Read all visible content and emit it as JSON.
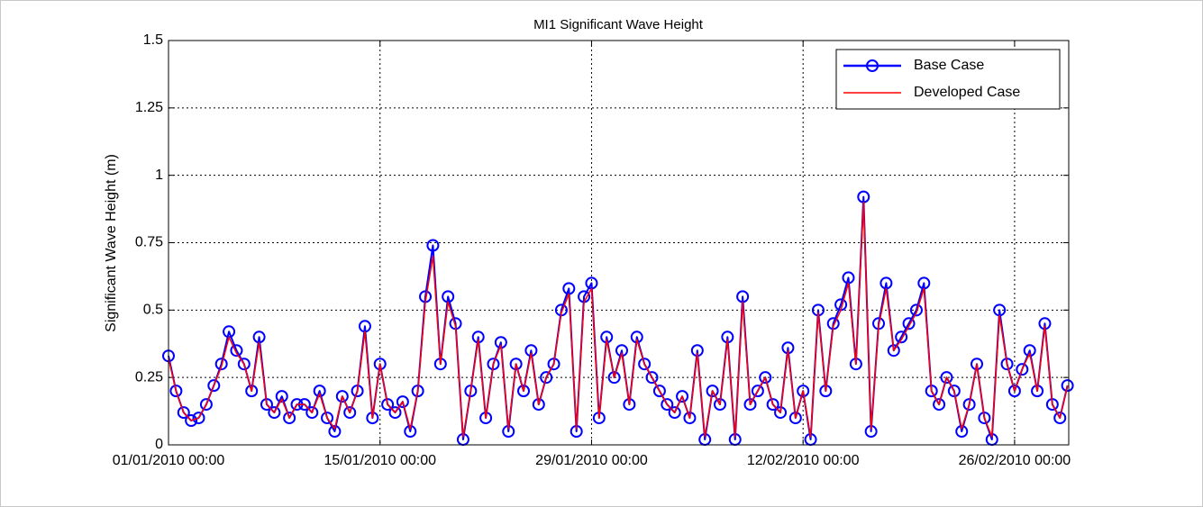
{
  "chart_data": {
    "type": "line",
    "title": "MI1 Significant Wave Height",
    "ylabel": "Significant Wave Height (m)",
    "x": [
      "01/01/2010 00:00",
      "01/01/2010 12:00",
      "02/01/2010 00:00",
      "02/01/2010 12:00",
      "03/01/2010 00:00",
      "03/01/2010 12:00",
      "04/01/2010 00:00",
      "04/01/2010 12:00",
      "05/01/2010 00:00",
      "05/01/2010 12:00",
      "06/01/2010 00:00",
      "06/01/2010 12:00",
      "07/01/2010 00:00",
      "07/01/2010 12:00",
      "08/01/2010 00:00",
      "08/01/2010 12:00",
      "09/01/2010 00:00",
      "09/01/2010 12:00",
      "10/01/2010 00:00",
      "10/01/2010 12:00",
      "11/01/2010 00:00",
      "11/01/2010 12:00",
      "12/01/2010 00:00",
      "12/01/2010 12:00",
      "13/01/2010 00:00",
      "13/01/2010 12:00",
      "14/01/2010 00:00",
      "14/01/2010 12:00",
      "15/01/2010 00:00",
      "15/01/2010 12:00",
      "16/01/2010 00:00",
      "16/01/2010 12:00",
      "17/01/2010 00:00",
      "17/01/2010 12:00",
      "18/01/2010 00:00",
      "18/01/2010 12:00",
      "19/01/2010 00:00",
      "19/01/2010 12:00",
      "20/01/2010 00:00",
      "20/01/2010 12:00",
      "21/01/2010 00:00",
      "21/01/2010 12:00",
      "22/01/2010 00:00",
      "22/01/2010 12:00",
      "23/01/2010 00:00",
      "23/01/2010 12:00",
      "24/01/2010 00:00",
      "24/01/2010 12:00",
      "25/01/2010 00:00",
      "25/01/2010 12:00",
      "26/01/2010 00:00",
      "26/01/2010 12:00",
      "27/01/2010 00:00",
      "27/01/2010 12:00",
      "28/01/2010 00:00",
      "28/01/2010 12:00",
      "29/01/2010 00:00",
      "29/01/2010 12:00",
      "30/01/2010 00:00",
      "30/01/2010 12:00",
      "31/01/2010 00:00",
      "31/01/2010 12:00",
      "01/02/2010 00:00",
      "01/02/2010 12:00",
      "02/02/2010 00:00",
      "02/02/2010 12:00",
      "03/02/2010 00:00",
      "03/02/2010 12:00",
      "04/02/2010 00:00",
      "04/02/2010 12:00",
      "05/02/2010 00:00",
      "05/02/2010 12:00",
      "06/02/2010 00:00",
      "06/02/2010 12:00",
      "07/02/2010 00:00",
      "07/02/2010 12:00",
      "08/02/2010 00:00",
      "08/02/2010 12:00",
      "09/02/2010 00:00",
      "09/02/2010 12:00",
      "10/02/2010 00:00",
      "10/02/2010 12:00",
      "11/02/2010 00:00",
      "11/02/2010 12:00",
      "12/02/2010 00:00",
      "12/02/2010 12:00",
      "13/02/2010 00:00",
      "13/02/2010 12:00",
      "14/02/2010 00:00",
      "14/02/2010 12:00",
      "15/02/2010 00:00",
      "15/02/2010 12:00",
      "16/02/2010 00:00",
      "16/02/2010 12:00",
      "17/02/2010 00:00",
      "17/02/2010 12:00",
      "18/02/2010 00:00",
      "18/02/2010 12:00",
      "19/02/2010 00:00",
      "19/02/2010 12:00",
      "20/02/2010 00:00",
      "20/02/2010 12:00",
      "21/02/2010 00:00",
      "21/02/2010 12:00",
      "22/02/2010 00:00",
      "22/02/2010 12:00",
      "23/02/2010 00:00",
      "23/02/2010 12:00",
      "24/02/2010 00:00",
      "24/02/2010 12:00",
      "25/02/2010 00:00",
      "25/02/2010 12:00",
      "26/02/2010 00:00",
      "26/02/2010 12:00",
      "27/02/2010 00:00",
      "27/02/2010 12:00",
      "28/02/2010 00:00",
      "28/02/2010 12:00",
      "01/03/2010 00:00",
      "01/03/2010 12:00"
    ],
    "series": [
      {
        "name": "Base Case",
        "color": "#0000ff",
        "marker": "o",
        "values": [
          0.33,
          0.2,
          0.12,
          0.09,
          0.1,
          0.15,
          0.22,
          0.3,
          0.42,
          0.35,
          0.3,
          0.2,
          0.4,
          0.15,
          0.12,
          0.18,
          0.1,
          0.15,
          0.15,
          0.12,
          0.2,
          0.1,
          0.05,
          0.18,
          0.12,
          0.2,
          0.44,
          0.1,
          0.3,
          0.15,
          0.12,
          0.16,
          0.05,
          0.2,
          0.55,
          0.74,
          0.3,
          0.55,
          0.45,
          0.02,
          0.2,
          0.4,
          0.1,
          0.3,
          0.38,
          0.05,
          0.3,
          0.2,
          0.35,
          0.15,
          0.25,
          0.3,
          0.5,
          0.58,
          0.05,
          0.55,
          0.6,
          0.1,
          0.4,
          0.25,
          0.35,
          0.15,
          0.4,
          0.3,
          0.25,
          0.2,
          0.15,
          0.12,
          0.18,
          0.1,
          0.35,
          0.02,
          0.2,
          0.15,
          0.4,
          0.02,
          0.55,
          0.15,
          0.2,
          0.25,
          0.15,
          0.12,
          0.36,
          0.1,
          0.2,
          0.02,
          0.5,
          0.2,
          0.45,
          0.52,
          0.62,
          0.3,
          0.92,
          0.05,
          0.45,
          0.6,
          0.35,
          0.4,
          0.45,
          0.5,
          0.6,
          0.2,
          0.15,
          0.25,
          0.2,
          0.05,
          0.15,
          0.3,
          0.1,
          0.02,
          0.5,
          0.3,
          0.2,
          0.28,
          0.35,
          0.2,
          0.45,
          0.15,
          0.1,
          0.22
        ]
      },
      {
        "name": "Developed Case",
        "color": "#ff0000",
        "values": [
          0.32,
          0.2,
          0.12,
          0.09,
          0.1,
          0.15,
          0.22,
          0.29,
          0.4,
          0.34,
          0.3,
          0.2,
          0.38,
          0.15,
          0.12,
          0.17,
          0.1,
          0.15,
          0.15,
          0.12,
          0.19,
          0.1,
          0.06,
          0.18,
          0.12,
          0.2,
          0.42,
          0.1,
          0.3,
          0.15,
          0.12,
          0.16,
          0.06,
          0.2,
          0.53,
          0.7,
          0.3,
          0.53,
          0.44,
          0.03,
          0.2,
          0.39,
          0.1,
          0.3,
          0.37,
          0.06,
          0.3,
          0.2,
          0.34,
          0.15,
          0.25,
          0.3,
          0.49,
          0.56,
          0.06,
          0.53,
          0.58,
          0.1,
          0.39,
          0.25,
          0.34,
          0.15,
          0.39,
          0.3,
          0.25,
          0.2,
          0.15,
          0.12,
          0.18,
          0.1,
          0.34,
          0.03,
          0.2,
          0.15,
          0.39,
          0.03,
          0.53,
          0.15,
          0.2,
          0.25,
          0.15,
          0.12,
          0.35,
          0.1,
          0.2,
          0.03,
          0.49,
          0.2,
          0.44,
          0.5,
          0.6,
          0.3,
          0.9,
          0.06,
          0.44,
          0.58,
          0.35,
          0.39,
          0.44,
          0.49,
          0.58,
          0.2,
          0.15,
          0.25,
          0.2,
          0.06,
          0.15,
          0.3,
          0.1,
          0.03,
          0.48,
          0.3,
          0.2,
          0.28,
          0.34,
          0.2,
          0.44,
          0.15,
          0.1,
          0.22
        ]
      }
    ],
    "xlim": [
      "01/01/2010 00:00",
      "01/03/2010 14:00"
    ],
    "xticks": [
      "01/01/2010 00:00",
      "15/01/2010 00:00",
      "29/01/2010 00:00",
      "12/02/2010 00:00",
      "26/02/2010 00:00"
    ],
    "ylim": [
      0,
      1.5
    ],
    "yticks": [
      0,
      0.25,
      0.5,
      0.75,
      1,
      1.25,
      1.5
    ],
    "grid": true,
    "legend": "upper right"
  }
}
